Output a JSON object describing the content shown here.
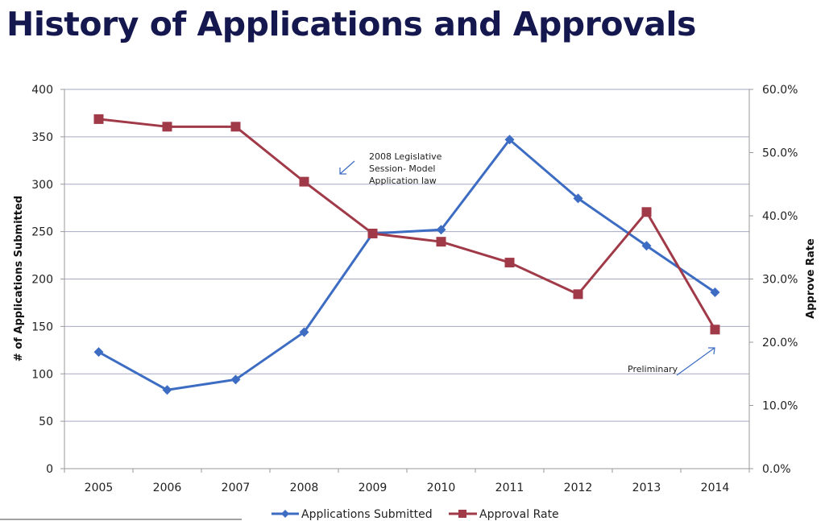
{
  "header": {
    "title": "History of Applications and Approvals"
  },
  "colors": {
    "series_submitted": "#3d6cc3",
    "series_approval": "#a13a48",
    "grid": "#a7a9c4",
    "title": "#15174f"
  },
  "chart_data": {
    "type": "line",
    "title": "History of Applications and Approvals",
    "xlabel": "",
    "ylabel": "# of Applications Submitted",
    "y2label": "Approve Rate",
    "categories": [
      "2005",
      "2006",
      "2007",
      "2008",
      "2009",
      "2010",
      "2011",
      "2012",
      "2013",
      "2014"
    ],
    "ylim": [
      0,
      400
    ],
    "y2lim": [
      0,
      60
    ],
    "yticks": [
      "0",
      "50",
      "100",
      "150",
      "200",
      "250",
      "300",
      "350",
      "400"
    ],
    "y2ticks": [
      "0.0%",
      "10.0%",
      "20.0%",
      "30.0%",
      "40.0%",
      "50.0%",
      "60.0%"
    ],
    "grid": true,
    "legend_position": "bottom",
    "series": [
      {
        "name": "Applications Submitted",
        "axis": "left",
        "marker": "diamond",
        "values": [
          123,
          83,
          94,
          144,
          248,
          252,
          347,
          285,
          235,
          186
        ]
      },
      {
        "name": "Approval Rate",
        "axis": "right",
        "unit": "%",
        "marker": "square",
        "values": [
          55.3,
          54.1,
          54.1,
          45.4,
          37.2,
          35.9,
          32.6,
          27.6,
          40.6,
          22.0
        ]
      }
    ],
    "annotations": [
      {
        "lines": [
          "2008 Legislative",
          "Session- Model",
          "Application law"
        ],
        "points_to": "2008"
      },
      {
        "lines": [
          "Preliminary"
        ],
        "points_to": "2014"
      }
    ]
  }
}
